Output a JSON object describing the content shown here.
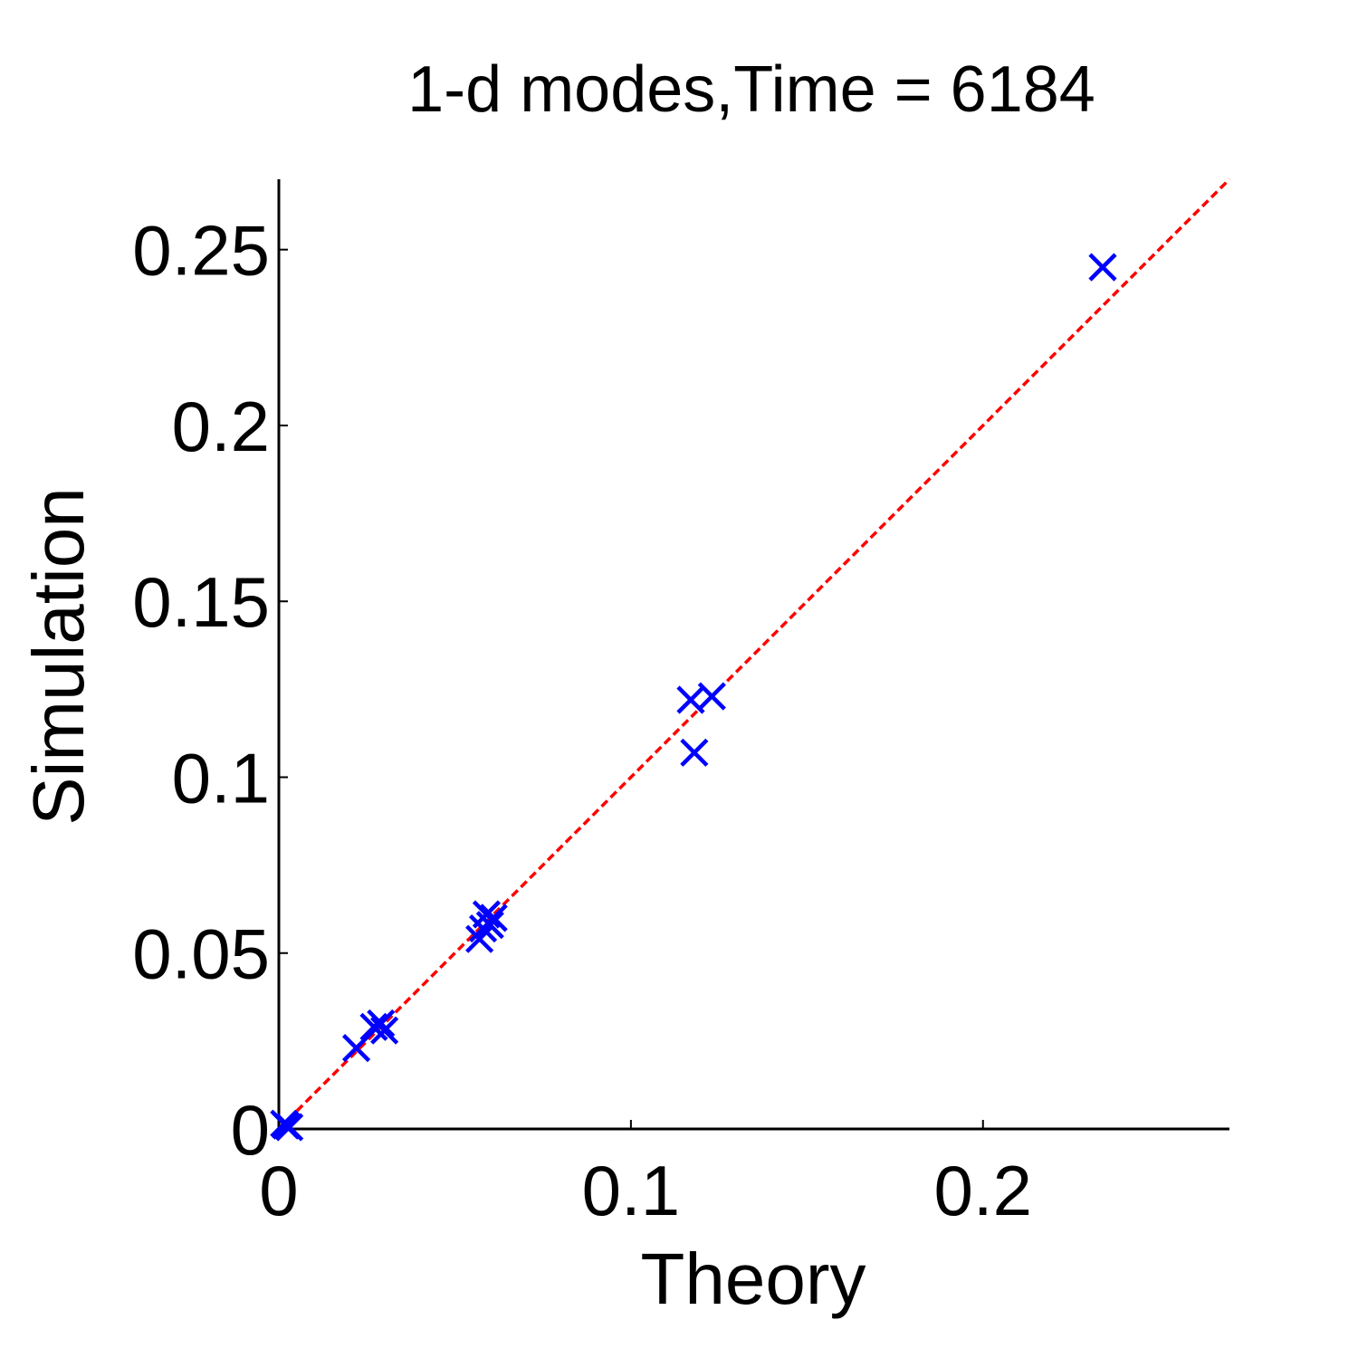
{
  "chart_data": {
    "type": "scatter",
    "title": "1-d modes,Time = 6184",
    "xlabel": "Theory",
    "ylabel": "Simulation",
    "xlim": [
      0,
      0.27
    ],
    "ylim": [
      0,
      0.27
    ],
    "x_ticks": [
      0,
      0.1,
      0.2
    ],
    "x_tick_labels": [
      "0",
      "0.1",
      "0.2"
    ],
    "y_ticks": [
      0,
      0.05,
      0.1,
      0.15,
      0.2,
      0.25
    ],
    "y_tick_labels": [
      "0",
      "0.05",
      "0.1",
      "0.15",
      "0.2",
      "0.25"
    ],
    "grid": false,
    "series": [
      {
        "marker": "x",
        "color": "#0000ff",
        "points": [
          {
            "x": 0.002,
            "y": 0.001
          },
          {
            "x": 0.003,
            "y": 0.0005
          },
          {
            "x": 0.0015,
            "y": 0.0015
          },
          {
            "x": 0.022,
            "y": 0.023
          },
          {
            "x": 0.027,
            "y": 0.029
          },
          {
            "x": 0.029,
            "y": 0.03
          },
          {
            "x": 0.03,
            "y": 0.028
          },
          {
            "x": 0.057,
            "y": 0.054
          },
          {
            "x": 0.058,
            "y": 0.057
          },
          {
            "x": 0.059,
            "y": 0.061
          },
          {
            "x": 0.06,
            "y": 0.058
          },
          {
            "x": 0.061,
            "y": 0.06
          },
          {
            "x": 0.117,
            "y": 0.122
          },
          {
            "x": 0.118,
            "y": 0.107
          },
          {
            "x": 0.123,
            "y": 0.123
          },
          {
            "x": 0.234,
            "y": 0.245
          }
        ]
      },
      {
        "type": "line",
        "style": "dashed",
        "color": "#ff0000",
        "x": [
          0,
          0.27
        ],
        "y": [
          0,
          0.27
        ]
      }
    ]
  }
}
